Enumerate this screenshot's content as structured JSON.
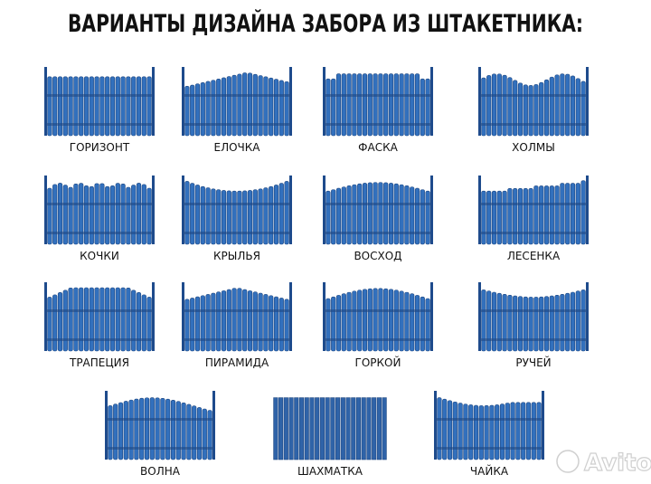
{
  "title": "ВАРИАНТЫ ДИЗАЙНА ЗАБОРА ИЗ ШТАКЕТНИКА:",
  "items": [
    {
      "label": "ГОРИЗОНТ"
    },
    {
      "label": "ЕЛОЧКА"
    },
    {
      "label": "ФАСКА"
    },
    {
      "label": "ХОЛМЫ"
    },
    {
      "label": "КОЧКИ"
    },
    {
      "label": "КРЫЛЬЯ"
    },
    {
      "label": "ВОСХОД"
    },
    {
      "label": "ЛЕСЕНКА"
    },
    {
      "label": "ТРАПЕЦИЯ"
    },
    {
      "label": "ПИРАМИДА"
    },
    {
      "label": "ГОРКОЙ"
    },
    {
      "label": "РУЧЕЙ"
    },
    {
      "label": "ВОЛНА"
    },
    {
      "label": "ШАХМАТКА"
    },
    {
      "label": "ЧАЙКА"
    }
  ],
  "watermark": "Avito"
}
